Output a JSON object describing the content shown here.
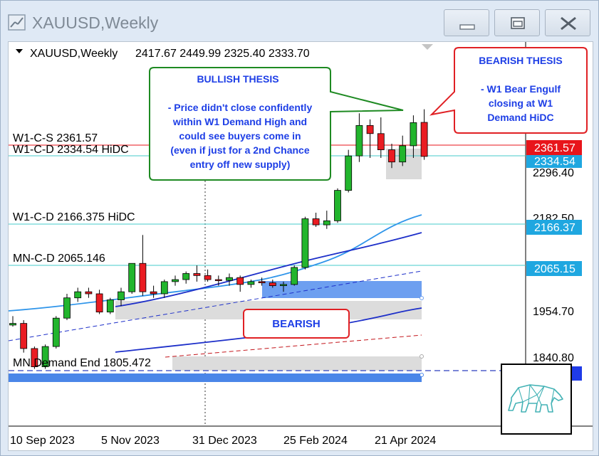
{
  "window": {
    "title": "XAUUSD,Weekly",
    "minimize_icon": "minimize-icon",
    "restore_icon": "restore-icon",
    "close_icon": "close-icon"
  },
  "chart_header": {
    "symbol_timeframe": "XAUUSD,Weekly",
    "ohlc": "2417.67 2449.99 2325.40 2333.70"
  },
  "level_labels": {
    "w1_c_s": "W1-C-S 2361.57",
    "w1_c_d_hidc_1": "W1-C-D 2334.54 HiDC",
    "w1_c_d_hidc_2": "W1-C-D 2166.375 HiDC",
    "mn_c_d": "MN-C-D 2065.146",
    "mn_demand_end": "MN Demand End 1805.472"
  },
  "annotations": {
    "bullish_title": "BULLISH THESIS",
    "bullish_lines": [
      "- Price didn't close confidently",
      "within W1 Demand High and",
      "could see buyers come in",
      "(even if just for a 2nd Chance",
      "entry off new supply)"
    ],
    "bearish_thesis_title": "BEARISH THESIS",
    "bearish_thesis_lines": [
      "- W1 Bear Engulf",
      "closing at W1",
      "Demand HiDC"
    ],
    "bearish_label": "BEARISH"
  },
  "price_axis": {
    "ticks": [
      "2296.40",
      "2182.50",
      "1954.70",
      "1840.80"
    ],
    "tags": [
      {
        "text": "2361.57",
        "color": "#e8151b"
      },
      {
        "text": "2334.54",
        "color": "#1fa7e0"
      },
      {
        "text": "2166.37",
        "color": "#1fa7e0"
      },
      {
        "text": "2065.15",
        "color": "#1fa7e0"
      }
    ]
  },
  "time_axis": {
    "labels": [
      "10 Sep 2023",
      "5 Nov 2023",
      "31 Dec 2023",
      "25 Feb 2024",
      "21 Apr 2024"
    ]
  },
  "logo": {
    "icon": "bear-logo-icon"
  },
  "chart_data": {
    "type": "candlestick",
    "series": [
      {
        "name": "XAUUSD,Weekly",
        "ohlc": [
          [
            1918,
            1940,
            1914,
            1922
          ],
          [
            1922,
            1930,
            1850,
            1860
          ],
          [
            1860,
            1865,
            1810,
            1815
          ],
          [
            1815,
            1870,
            1810,
            1865
          ],
          [
            1865,
            1940,
            1860,
            1935
          ],
          [
            1935,
            1995,
            1930,
            1985
          ],
          [
            1985,
            2010,
            1975,
            2000
          ],
          [
            2000,
            2010,
            1985,
            1995
          ],
          [
            1995,
            2005,
            1945,
            1950
          ],
          [
            1950,
            1985,
            1945,
            1980
          ],
          [
            1980,
            2010,
            1965,
            2000
          ],
          [
            2000,
            2070,
            1995,
            2070
          ],
          [
            2070,
            2140,
            1990,
            2000
          ],
          [
            2000,
            2015,
            1985,
            1995
          ],
          [
            1995,
            2030,
            1985,
            2025
          ],
          [
            2025,
            2040,
            2015,
            2030
          ],
          [
            2030,
            2050,
            2020,
            2045
          ],
          [
            2045,
            2065,
            2025,
            2040
          ],
          [
            2040,
            2055,
            2025,
            2030
          ],
          [
            2030,
            2040,
            2015,
            2028
          ],
          [
            2028,
            2045,
            2015,
            2035
          ],
          [
            2035,
            2040,
            2000,
            2018
          ],
          [
            2018,
            2030,
            2010,
            2025
          ],
          [
            2025,
            2035,
            2015,
            2022
          ],
          [
            2022,
            2030,
            2010,
            2015
          ],
          [
            2015,
            2025,
            2000,
            2018
          ],
          [
            2018,
            2065,
            2015,
            2060
          ],
          [
            2060,
            2185,
            2055,
            2180
          ],
          [
            2180,
            2195,
            2160,
            2165
          ],
          [
            2165,
            2200,
            2155,
            2175
          ],
          [
            2175,
            2255,
            2170,
            2250
          ],
          [
            2250,
            2350,
            2245,
            2335
          ],
          [
            2335,
            2440,
            2320,
            2410
          ],
          [
            2410,
            2425,
            2330,
            2390
          ],
          [
            2390,
            2430,
            2330,
            2350
          ],
          [
            2350,
            2365,
            2305,
            2320
          ],
          [
            2320,
            2385,
            2310,
            2360
          ],
          [
            2360,
            2435,
            2330,
            2417
          ],
          [
            2417.67,
            2449.99,
            2325.4,
            2333.7
          ]
        ]
      }
    ],
    "levels": [
      {
        "name": "W1-C-S",
        "value": 2361.57
      },
      {
        "name": "W1-C-D HiDC",
        "value": 2334.54
      },
      {
        "name": "W1-C-D HiDC",
        "value": 2166.375
      },
      {
        "name": "MN-C-D",
        "value": 2065.146
      },
      {
        "name": "MN Demand End",
        "value": 1805.472
      }
    ],
    "ylabel_ticks": [
      2296.4,
      2182.5,
      1954.7,
      1840.8
    ],
    "x_ticks": [
      "10 Sep 2023",
      "5 Nov 2023",
      "31 Dec 2023",
      "25 Feb 2024",
      "21 Apr 2024"
    ],
    "colors": {
      "bull": "#22b52d",
      "bear": "#ea1c22",
      "ma_fast": "#2f95ea",
      "ma_slow": "#1d2fc9",
      "level": "#46cbcb"
    }
  }
}
